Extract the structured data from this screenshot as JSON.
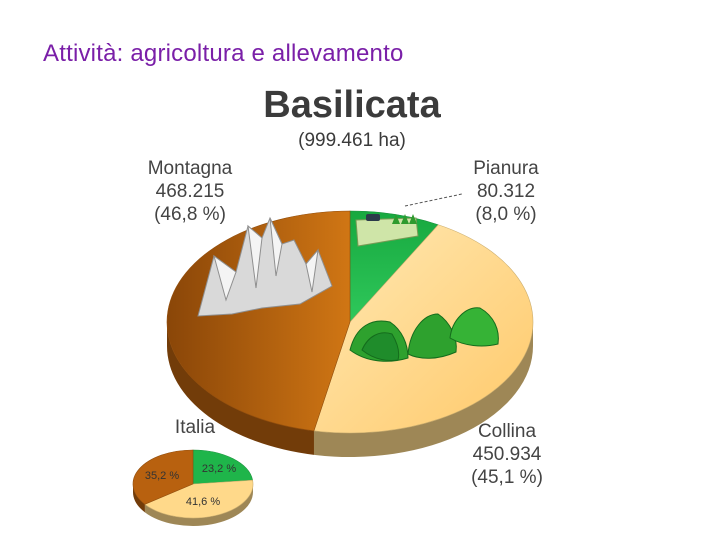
{
  "slide": {
    "title": "Attività: agricoltura e allevamento"
  },
  "chart_data": [
    {
      "type": "pie",
      "title": "Basilicata",
      "subtitle": "(999.461 ha)",
      "slices": [
        {
          "name": "Montagna",
          "value": 468215,
          "value_text": "468.215",
          "percent": 46.8,
          "percent_text": "(46,8 %)",
          "color": "#b8610f"
        },
        {
          "name": "Pianura",
          "value": 80312,
          "value_text": "80.312",
          "percent": 8.0,
          "percent_text": "(8,0 %)",
          "color": "#1fb54a"
        },
        {
          "name": "Collina",
          "value": 450934,
          "value_text": "450.934",
          "percent": 45.1,
          "percent_text": "(45,1 %)",
          "color": "#ffd98a"
        }
      ]
    },
    {
      "type": "pie",
      "title": "Italia",
      "slices": [
        {
          "name": "Montagna",
          "percent": 35.2,
          "percent_text": "35,2 %",
          "color": "#b8610f"
        },
        {
          "name": "Pianura",
          "percent": 23.2,
          "percent_text": "23,2 %",
          "color": "#1fb54a"
        },
        {
          "name": "Collina",
          "percent": 41.6,
          "percent_text": "41,6 %",
          "color": "#ffd98a"
        }
      ]
    }
  ]
}
